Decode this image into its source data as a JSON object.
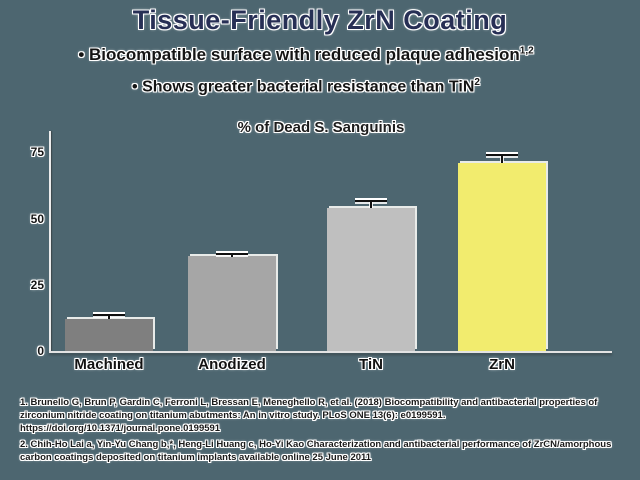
{
  "slide": {
    "title": "Tissue-Friendly ZrN Coating",
    "bullets": [
      {
        "text": "Biocompatible surface with reduced plaque adhesion",
        "superscript": "1,2"
      },
      {
        "text": "Shows greater bacterial resistance than TiN",
        "superscript": "2"
      }
    ]
  },
  "chart_data": {
    "type": "bar",
    "title": "% of Dead S. Sanguinis",
    "categories": [
      "Machined",
      "Anodized",
      "TiN",
      "ZrN"
    ],
    "values": [
      12,
      36,
      54,
      71
    ],
    "error_bars": [
      2,
      1,
      3,
      3.5
    ],
    "bar_colors": [
      "#7f7f7f",
      "#a6a6a6",
      "#bfbfbf",
      "#f2ec6e"
    ],
    "yticks": [
      0,
      25,
      50,
      75
    ],
    "ylim": [
      0,
      80
    ],
    "xlabel": "",
    "ylabel": "",
    "grid": false,
    "legend": false
  },
  "footnotes": [
    "1. Brunello G, Brun P, Gardin C, Ferroni L, Bressan E, Meneghello R, et al. (2018) Biocompatibility and antibacterial properties of zirconium nitride coating on titanium abutments: An in vitro study. PLoS ONE 13(6): e0199591. https://doi.org/10.1371/journal.pone.0199591",
    "2. Chih-Ho Lai a, Yin-Yu Chang b,*, Heng-Li Huang c, Ho-Yi Kao Characterization and antibacterial performance of ZrCN/amorphous carbon coatings deposited on titanium implants available online 25 June 2011"
  ],
  "colors": {
    "background": "#4d6670",
    "title_text": "#272f55",
    "body_text": "#141414",
    "axis_line": "#e8e8e8",
    "highlight_bar": "#f2ec6e"
  }
}
